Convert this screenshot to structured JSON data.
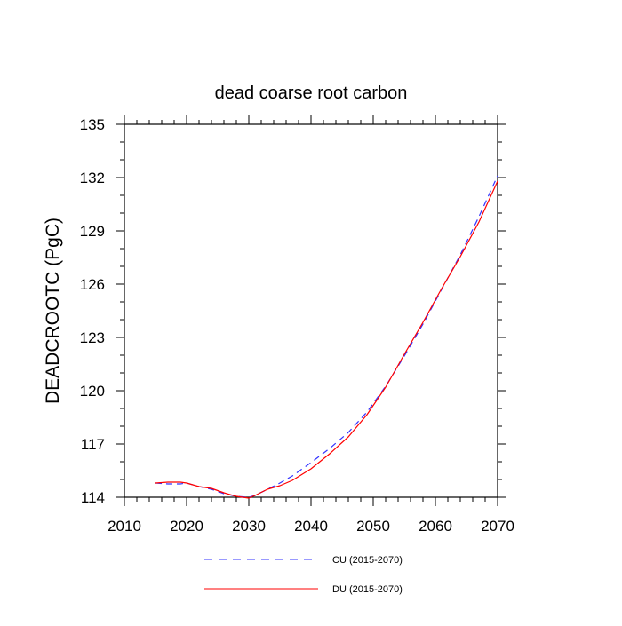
{
  "chart_data": {
    "type": "line",
    "title": "dead coarse root carbon",
    "xlabel": "",
    "ylabel": "DEADCROOTC  (PgC)",
    "xlim": [
      2010,
      2070
    ],
    "ylim": [
      114,
      135
    ],
    "xticks": [
      2010,
      2020,
      2030,
      2040,
      2050,
      2060,
      2070
    ],
    "yticks": [
      114,
      117,
      120,
      123,
      126,
      129,
      132,
      135
    ],
    "grid": false,
    "legend_position": "bottom",
    "series": [
      {
        "name": "CU (2015-2070)",
        "color": "#3333ff",
        "dash": "dashed",
        "x": [
          2015,
          2017,
          2019,
          2020,
          2022,
          2024,
          2026,
          2028,
          2030,
          2031,
          2033,
          2035,
          2037,
          2040,
          2043,
          2046,
          2049,
          2052,
          2055,
          2058,
          2061,
          2064,
          2067,
          2070
        ],
        "y": [
          114.8,
          114.75,
          114.75,
          114.8,
          114.6,
          114.45,
          114.2,
          114.05,
          114.0,
          114.1,
          114.45,
          114.8,
          115.2,
          115.95,
          116.75,
          117.65,
          118.8,
          120.25,
          121.95,
          123.75,
          125.7,
          127.65,
          129.8,
          132.1
        ]
      },
      {
        "name": "DU (2015-2070)",
        "color": "#ff0000",
        "dash": "solid",
        "x": [
          2015,
          2017,
          2019,
          2020,
          2022,
          2024,
          2026,
          2028,
          2030,
          2031,
          2033,
          2035,
          2037,
          2040,
          2043,
          2046,
          2049,
          2052,
          2055,
          2058,
          2061,
          2064,
          2067,
          2070
        ],
        "y": [
          114.8,
          114.85,
          114.85,
          114.8,
          114.6,
          114.5,
          114.25,
          114.05,
          113.95,
          114.1,
          114.45,
          114.65,
          114.95,
          115.6,
          116.45,
          117.4,
          118.65,
          120.2,
          122.05,
          123.85,
          125.75,
          127.55,
          129.5,
          131.8
        ]
      }
    ]
  }
}
